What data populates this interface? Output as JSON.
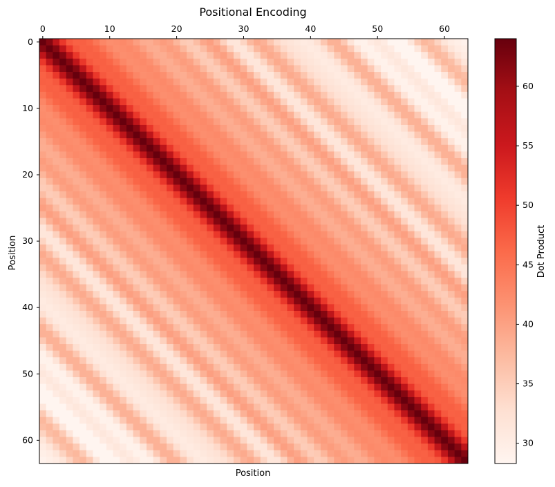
{
  "chart_data": {
    "type": "heatmap",
    "title": "Positional Encoding",
    "xlabel": "Position",
    "ylabel": "Position",
    "xlim": [
      0,
      63
    ],
    "ylim": [
      0,
      63
    ],
    "x_ticks": [
      0,
      10,
      20,
      30,
      40,
      50,
      60
    ],
    "y_ticks": [
      0,
      10,
      20,
      30,
      40,
      50,
      60
    ],
    "x_tick_labels": [
      "0",
      "10",
      "20",
      "30",
      "40",
      "50",
      "60"
    ],
    "y_tick_labels": [
      "0",
      "10",
      "20",
      "30",
      "40",
      "50",
      "60"
    ],
    "colormap": "Reds",
    "colorbar": {
      "label": "Dot Product",
      "vmin": 28.3,
      "vmax": 64,
      "ticks": [
        30,
        35,
        40,
        45,
        50,
        55,
        60
      ],
      "tick_labels": [
        "30",
        "35",
        "40",
        "45",
        "50",
        "55",
        "60"
      ]
    },
    "matrix_size": 64,
    "diagonal_value": 64,
    "grid": false
  }
}
